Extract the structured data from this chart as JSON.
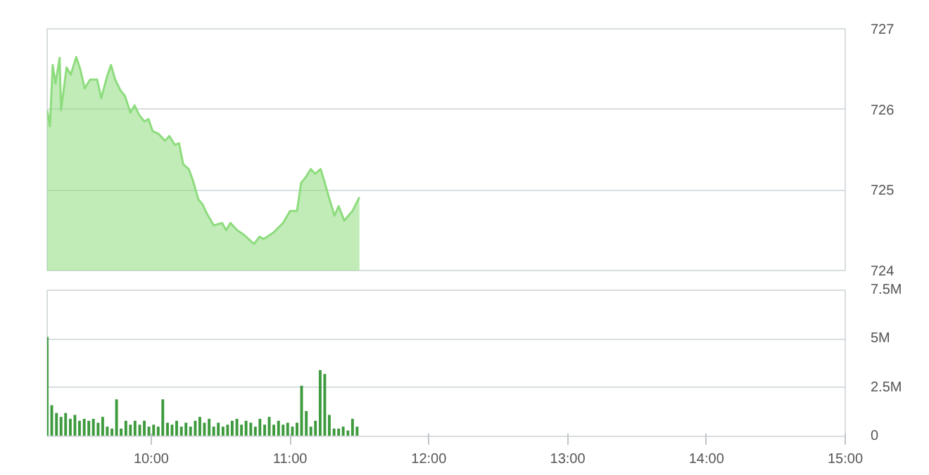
{
  "chart_data": [
    {
      "type": "area",
      "color": "#8edc7e",
      "xlim": [
        9.25,
        15
      ],
      "ylim": [
        724,
        727
      ],
      "yticks": [
        724,
        725,
        726,
        727
      ],
      "grid": "y",
      "tick_labels": "y",
      "x": [
        9.25,
        9.27,
        9.29,
        9.31,
        9.34,
        9.35,
        9.39,
        9.42,
        9.46,
        9.49,
        9.52,
        9.56,
        9.61,
        9.64,
        9.68,
        9.71,
        9.74,
        9.78,
        9.81,
        9.85,
        9.88,
        9.91,
        9.95,
        9.98,
        10.01,
        10.05,
        10.1,
        10.13,
        10.17,
        10.2,
        10.23,
        10.27,
        10.3,
        10.34,
        10.37,
        10.4,
        10.45,
        10.51,
        10.54,
        10.57,
        10.62,
        10.67,
        10.74,
        10.78,
        10.81,
        10.88,
        10.95,
        11.0,
        11.05,
        11.08,
        11.11,
        11.15,
        11.18,
        11.22,
        11.25,
        11.28,
        11.32,
        11.35,
        11.39,
        11.42,
        11.45,
        11.5
      ],
      "values": [
        725.99,
        725.79,
        726.55,
        726.32,
        726.64,
        725.99,
        726.52,
        726.43,
        726.65,
        726.49,
        726.26,
        726.37,
        726.37,
        726.14,
        726.4,
        726.55,
        726.37,
        726.23,
        726.17,
        725.96,
        726.05,
        725.94,
        725.85,
        725.88,
        725.73,
        725.7,
        725.61,
        725.67,
        725.56,
        725.58,
        725.32,
        725.26,
        725.12,
        724.88,
        724.82,
        724.71,
        724.56,
        724.59,
        724.5,
        724.59,
        724.5,
        724.44,
        724.33,
        724.42,
        724.39,
        724.47,
        724.59,
        724.74,
        724.74,
        725.09,
        725.15,
        725.26,
        725.2,
        725.26,
        725.09,
        724.91,
        724.68,
        724.8,
        724.62,
        724.68,
        724.74,
        724.91
      ]
    },
    {
      "type": "bar",
      "color": "#3d9a3d",
      "xlim": [
        9.25,
        15
      ],
      "xticks": [
        {
          "value": 10,
          "label": "10:00"
        },
        {
          "value": 11,
          "label": "11:00"
        },
        {
          "value": 12,
          "label": "12:00"
        },
        {
          "value": 13,
          "label": "13:00"
        },
        {
          "value": 14,
          "label": "14:00"
        },
        {
          "value": 15,
          "label": "15:00"
        }
      ],
      "ylim": [
        0,
        7.5
      ],
      "yticks": [
        0,
        {
          "value": 2.5,
          "label": "2.5M"
        },
        {
          "value": 5,
          "label": "5M"
        },
        {
          "value": 7.5,
          "label": "7.5M"
        }
      ],
      "grid": "y",
      "x": [
        9.25,
        9.283,
        9.317,
        9.35,
        9.383,
        9.417,
        9.45,
        9.483,
        9.517,
        9.55,
        9.583,
        9.617,
        9.65,
        9.683,
        9.717,
        9.75,
        9.783,
        9.817,
        9.85,
        9.883,
        9.917,
        9.95,
        9.983,
        10.017,
        10.05,
        10.083,
        10.117,
        10.15,
        10.183,
        10.217,
        10.25,
        10.283,
        10.317,
        10.35,
        10.383,
        10.417,
        10.45,
        10.483,
        10.517,
        10.55,
        10.583,
        10.617,
        10.65,
        10.683,
        10.717,
        10.75,
        10.783,
        10.817,
        10.85,
        10.883,
        10.917,
        10.95,
        10.983,
        11.017,
        11.05,
        11.083,
        11.117,
        11.15,
        11.183,
        11.217,
        11.25,
        11.283,
        11.317,
        11.35,
        11.383,
        11.417,
        11.45,
        11.483
      ],
      "values": [
        5.1,
        1.6,
        1.2,
        1.0,
        1.2,
        0.9,
        1.1,
        0.8,
        0.9,
        0.8,
        0.9,
        0.7,
        1.0,
        0.5,
        0.4,
        1.9,
        0.4,
        0.8,
        0.6,
        0.8,
        0.6,
        0.8,
        0.5,
        0.6,
        0.5,
        1.9,
        0.7,
        0.6,
        0.8,
        0.5,
        0.7,
        0.5,
        0.8,
        1.0,
        0.7,
        0.9,
        0.5,
        0.7,
        0.5,
        0.6,
        0.8,
        0.9,
        0.6,
        0.8,
        0.7,
        0.5,
        0.9,
        0.6,
        1.0,
        0.6,
        0.8,
        0.6,
        0.7,
        0.5,
        0.7,
        2.6,
        1.3,
        0.5,
        0.8,
        3.4,
        3.2,
        1.1,
        0.4,
        0.4,
        0.5,
        0.3,
        0.9,
        0.5
      ]
    }
  ]
}
